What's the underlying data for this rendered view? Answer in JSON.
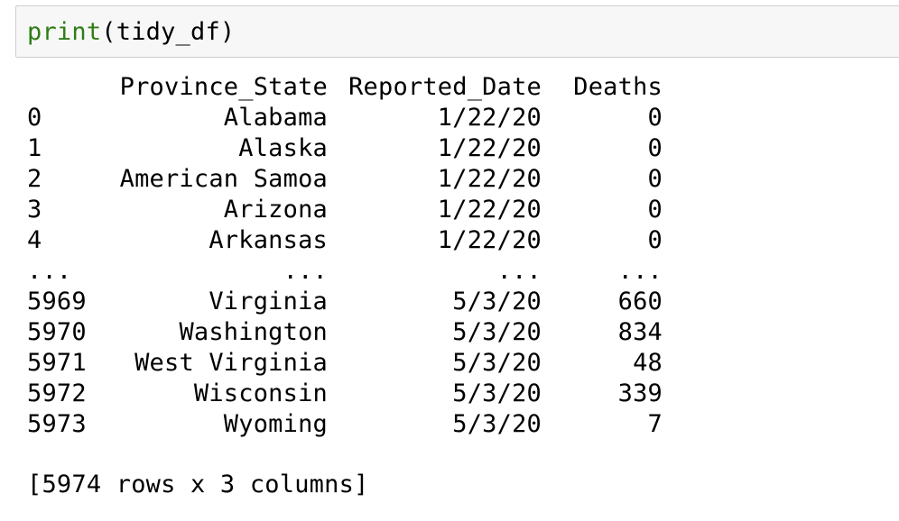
{
  "input_cell": {
    "func": "print",
    "args": "(tidy_df)"
  },
  "output": {
    "columns": [
      "",
      "Province_State",
      "Reported_Date",
      "Deaths"
    ],
    "rows": [
      [
        "0",
        "Alabama",
        "1/22/20",
        "0"
      ],
      [
        "1",
        "Alaska",
        "1/22/20",
        "0"
      ],
      [
        "2",
        "American Samoa",
        "1/22/20",
        "0"
      ],
      [
        "3",
        "Arizona",
        "1/22/20",
        "0"
      ],
      [
        "4",
        "Arkansas",
        "1/22/20",
        "0"
      ],
      [
        "...",
        "...",
        "...",
        "..."
      ],
      [
        "5969",
        "Virginia",
        "5/3/20",
        "660"
      ],
      [
        "5970",
        "Washington",
        "5/3/20",
        "834"
      ],
      [
        "5971",
        "West Virginia",
        "5/3/20",
        "48"
      ],
      [
        "5972",
        "Wisconsin",
        "5/3/20",
        "339"
      ],
      [
        "5973",
        "Wyoming",
        "5/3/20",
        "7"
      ]
    ],
    "summary": "[5974 rows x 3 columns]"
  },
  "colors": {
    "builtin": "#2e7d16",
    "cell_background": "#f7f7f7",
    "cell_border": "#cfcfcf"
  }
}
